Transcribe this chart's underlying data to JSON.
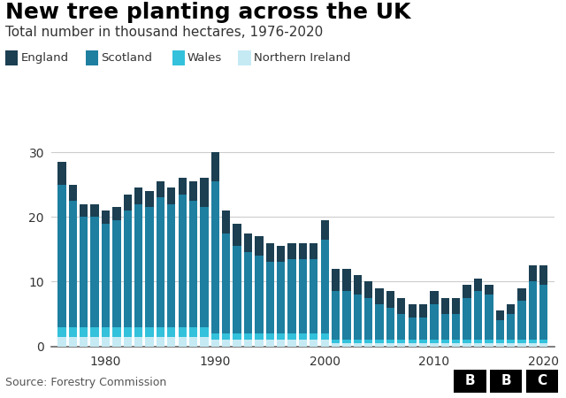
{
  "title": "New tree planting across the UK",
  "subtitle": "Total number in thousand hectares, 1976-2020",
  "source": "Source: Forestry Commission",
  "years": [
    1976,
    1977,
    1978,
    1979,
    1980,
    1981,
    1982,
    1983,
    1984,
    1985,
    1986,
    1987,
    1988,
    1989,
    1990,
    1991,
    1992,
    1993,
    1994,
    1995,
    1996,
    1997,
    1998,
    1999,
    2000,
    2001,
    2002,
    2003,
    2004,
    2005,
    2006,
    2007,
    2008,
    2009,
    2010,
    2011,
    2012,
    2013,
    2014,
    2015,
    2016,
    2017,
    2018,
    2019,
    2020
  ],
  "england": [
    3.5,
    2.5,
    2.0,
    2.0,
    2.0,
    2.0,
    2.5,
    2.5,
    2.5,
    2.5,
    2.5,
    2.5,
    3.0,
    4.5,
    4.5,
    3.5,
    3.5,
    3.0,
    3.0,
    3.0,
    2.5,
    2.5,
    2.5,
    2.5,
    3.0,
    3.5,
    3.5,
    3.0,
    2.5,
    2.5,
    2.5,
    2.5,
    2.0,
    2.0,
    2.0,
    2.5,
    2.5,
    2.0,
    2.0,
    1.5,
    1.5,
    1.5,
    2.0,
    2.5,
    3.0
  ],
  "scotland": [
    22.0,
    19.5,
    17.0,
    17.0,
    16.0,
    16.5,
    18.0,
    19.0,
    18.5,
    20.0,
    19.0,
    20.5,
    19.5,
    18.5,
    23.5,
    15.5,
    13.5,
    12.5,
    12.0,
    11.0,
    11.0,
    11.5,
    11.5,
    11.5,
    14.5,
    7.5,
    7.5,
    7.0,
    6.5,
    5.5,
    5.0,
    4.0,
    3.5,
    3.5,
    5.5,
    4.0,
    4.0,
    6.5,
    7.5,
    7.0,
    3.0,
    4.0,
    6.0,
    9.0,
    8.5
  ],
  "wales": [
    1.5,
    1.5,
    1.5,
    1.5,
    1.5,
    1.5,
    1.5,
    1.5,
    1.5,
    1.5,
    1.5,
    1.5,
    1.5,
    1.5,
    1.0,
    1.0,
    1.0,
    1.0,
    1.0,
    1.0,
    1.0,
    1.0,
    1.0,
    1.0,
    1.0,
    0.5,
    0.5,
    0.5,
    0.5,
    0.5,
    0.5,
    0.5,
    0.5,
    0.5,
    0.5,
    0.5,
    0.5,
    0.5,
    0.5,
    0.5,
    0.5,
    0.5,
    0.5,
    0.5,
    0.5
  ],
  "northern_ireland": [
    1.5,
    1.5,
    1.5,
    1.5,
    1.5,
    1.5,
    1.5,
    1.5,
    1.5,
    1.5,
    1.5,
    1.5,
    1.5,
    1.5,
    1.0,
    1.0,
    1.0,
    1.0,
    1.0,
    1.0,
    1.0,
    1.0,
    1.0,
    1.0,
    1.0,
    0.5,
    0.5,
    0.5,
    0.5,
    0.5,
    0.5,
    0.5,
    0.5,
    0.5,
    0.5,
    0.5,
    0.5,
    0.5,
    0.5,
    0.5,
    0.5,
    0.5,
    0.5,
    0.5,
    0.5
  ],
  "colors": {
    "england": "#1c3f52",
    "scotland": "#1e7fa0",
    "wales": "#33c1db",
    "northern_ireland": "#c5eaf4"
  },
  "ylim": [
    0,
    32
  ],
  "yticks": [
    0,
    10,
    20,
    30
  ],
  "xtick_years": [
    1980,
    1990,
    2000,
    2010,
    2020
  ],
  "background_color": "#ffffff",
  "title_fontsize": 18,
  "subtitle_fontsize": 11,
  "legend_labels": [
    "England",
    "Scotland",
    "Wales",
    "Northern Ireland"
  ]
}
